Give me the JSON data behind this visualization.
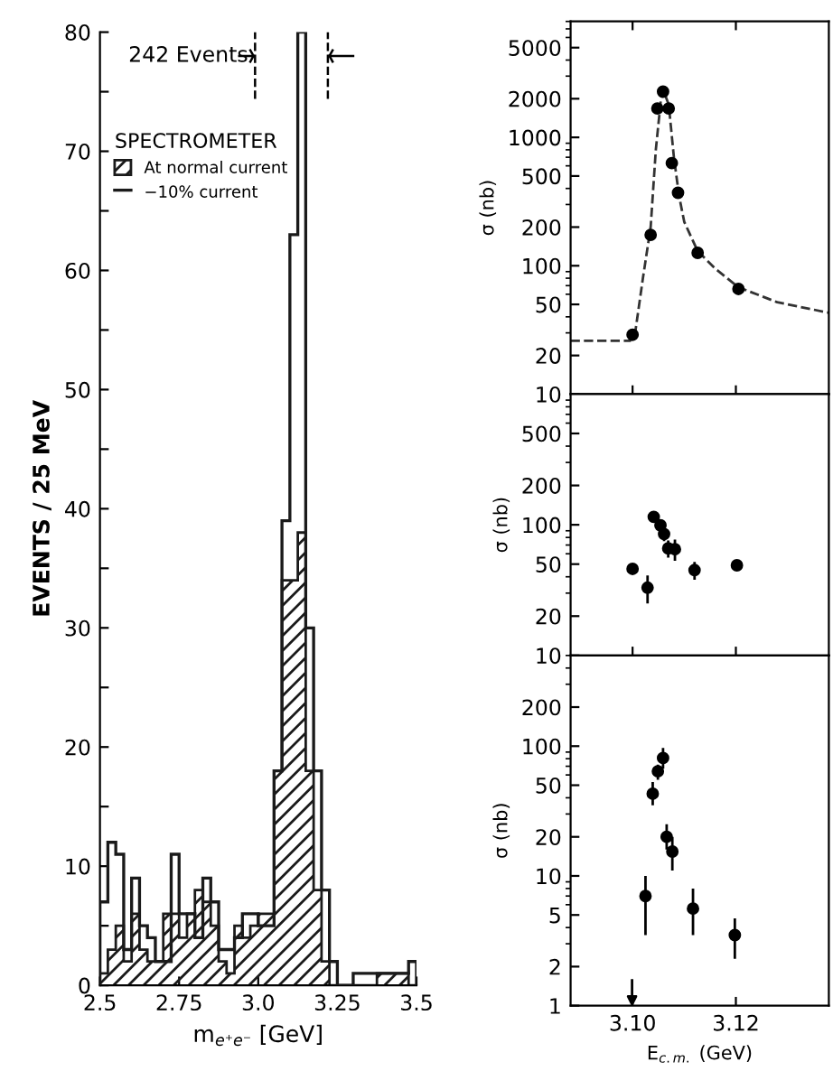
{
  "chart_data": [
    {
      "type": "histogram",
      "ylabel": "EVENTS / 25 MeV",
      "xlabel": "m$_{e⁺e⁻}$ [GeV]",
      "legend_title": "SPECTROMETER",
      "legend": "top left",
      "annotations": [
        "242 Events"
      ],
      "bins": [
        2.5,
        2.525,
        2.55,
        2.575,
        2.6,
        2.625,
        2.65,
        2.675,
        2.7,
        2.725,
        2.75,
        2.775,
        2.8,
        2.825,
        2.85,
        2.875,
        2.9,
        2.925,
        2.95,
        2.975,
        3.0,
        3.025,
        3.05,
        3.075,
        3.1,
        3.125,
        3.15,
        3.175,
        3.2,
        3.225,
        3.25,
        3.275,
        3.3,
        3.325,
        3.35,
        3.375,
        3.4,
        3.425,
        3.45,
        3.475,
        3.5
      ],
      "series": [
        {
          "name": "At normal current",
          "color": "#1a1a1a",
          "values": [
            1,
            3,
            5,
            2,
            6,
            3,
            2,
            2,
            6,
            6,
            4,
            6,
            8,
            7,
            5,
            2,
            1,
            5,
            4,
            5,
            6,
            6,
            18,
            34,
            34,
            38,
            18,
            8,
            2,
            0,
            0,
            0,
            0,
            0,
            0,
            1,
            1,
            1,
            1,
            0
          ]
        },
        {
          "name": "−10% current",
          "color": "#1a1a1a",
          "values": [
            7,
            12,
            11,
            3,
            9,
            5,
            4,
            2,
            2,
            11,
            6,
            6,
            4,
            9,
            7,
            3,
            3,
            4,
            6,
            6,
            5,
            5,
            18,
            39,
            63,
            80,
            30,
            18,
            8,
            2,
            0,
            0,
            1,
            1,
            1,
            1,
            1,
            1,
            1,
            2
          ]
        }
      ],
      "xlim": [
        2.5,
        3.5
      ],
      "xticks": [
        2.5,
        2.75,
        {
          "value": 3.0,
          "label": "3.0"
        },
        3.25,
        3.5
      ],
      "ylim": [
        0,
        80
      ],
      "yticks": [
        0,
        {
          "value": 5,
          "label": null
        },
        10,
        {
          "value": 15,
          "label": null
        },
        20,
        {
          "value": 25,
          "label": null
        },
        30,
        {
          "value": 35,
          "label": null
        },
        40,
        {
          "value": 45,
          "label": null
        },
        50,
        {
          "value": 55,
          "label": null
        },
        60,
        {
          "value": 65,
          "label": null
        },
        70,
        {
          "value": 75,
          "label": null
        },
        80
      ]
    },
    {
      "type": "scatter",
      "ylabel": "σ (nb)",
      "log": true,
      "tick_labels": "y",
      "marker": "circle",
      "x": [
        3.1,
        3.1035,
        3.1048,
        3.1059,
        3.107,
        3.1076,
        3.1088,
        3.1126,
        3.1205
      ],
      "series": [
        {
          "color": "#000000",
          "values": [
            29,
            174,
            1680,
            2270,
            1680,
            630,
            370,
            126,
            66
          ]
        },
        {
          "type": "line",
          "line_style": "dashed",
          "marker": "none",
          "color": "#333333",
          "x": [
            3.088,
            3.0995,
            3.1005,
            3.102,
            3.1035,
            3.1045,
            3.1055,
            3.106,
            3.107,
            3.108,
            3.109,
            3.11,
            3.1126,
            3.116,
            3.1205,
            3.128,
            3.138
          ],
          "values": [
            26,
            26,
            30,
            80,
            200,
            800,
            2000,
            2300,
            1800,
            700,
            350,
            220,
            130,
            95,
            68,
            52,
            43
          ]
        }
      ],
      "xlim": [
        3.088,
        3.138
      ],
      "xticks": [
        {
          "value": 3.1,
          "label": null
        },
        {
          "value": 3.12,
          "label": null
        }
      ],
      "ylim": [
        10,
        8000
      ],
      "yticks": [
        10,
        20,
        50,
        100,
        200,
        500,
        1000,
        2000,
        5000
      ]
    },
    {
      "type": "scatter",
      "ylabel": "σ (nb)",
      "log": true,
      "tick_labels": "y",
      "marker": "circle",
      "x": [
        3.1,
        3.1029,
        3.1041,
        3.1054,
        3.1061,
        3.1069,
        3.1082,
        3.112,
        3.1202
      ],
      "series": [
        {
          "color": "#000000",
          "values": [
            46,
            33,
            115,
            99,
            85,
            66,
            65,
            45,
            49
          ],
          "errors": [
            4,
            8,
            10,
            10,
            10,
            10,
            12,
            7,
            4
          ]
        }
      ],
      "xlim": [
        3.088,
        3.138
      ],
      "xticks": [
        {
          "value": 3.1,
          "label": null
        },
        {
          "value": 3.12,
          "label": null
        }
      ],
      "ylim": [
        10,
        1000
      ],
      "yticks": [
        10,
        20,
        50,
        100,
        200,
        500
      ]
    },
    {
      "type": "scatter",
      "ylabel": "σ (nb)",
      "xlabel": "E$_{c.m.}$ (GeV)",
      "log": true,
      "marker": "circle",
      "x": [
        3.1025,
        3.1039,
        3.1049,
        3.1059,
        3.1066,
        3.1077,
        3.1117,
        3.1198
      ],
      "series": [
        {
          "color": "#000000",
          "values": [
            7.0,
            43,
            64,
            81,
            20,
            15.4,
            5.6,
            3.5
          ],
          "errors": [
            [
              3.5,
              10
            ],
            [
              35,
              53
            ],
            [
              55,
              72
            ],
            [
              67,
              97
            ],
            [
              16,
              25
            ],
            [
              11,
              20
            ],
            [
              3.5,
              8
            ],
            [
              2.3,
              4.7
            ]
          ]
        },
        {
          "color": "#000000",
          "marker": "triangle",
          "x": [
            3.0999
          ],
          "values": [
            1.1
          ],
          "errors": [
            [
              1.1,
              1.6
            ]
          ]
        }
      ],
      "xlim": [
        3.088,
        3.138
      ],
      "xticks": [
        {
          "value": 3.1,
          "label": "3.10"
        },
        3.12
      ],
      "ylim": [
        1,
        500
      ],
      "yticks": [
        1,
        2,
        5,
        10,
        20,
        50,
        100,
        200
      ]
    }
  ]
}
